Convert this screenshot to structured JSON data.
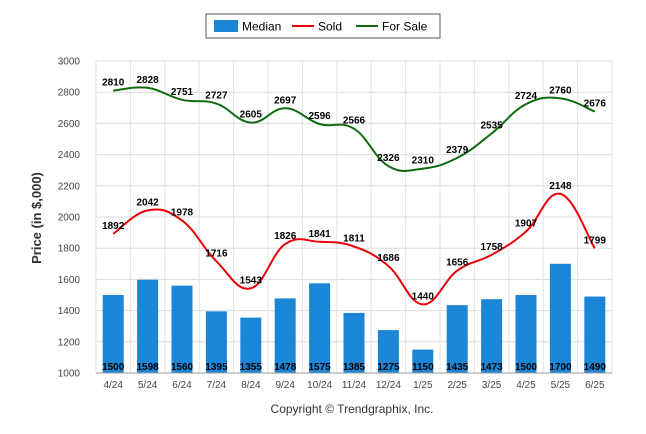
{
  "chart_data": {
    "type": "bar",
    "ylabel": "Price (in $,000)",
    "ylim": [
      1000,
      3000
    ],
    "yticks": [
      1000,
      1200,
      1400,
      1600,
      1800,
      2000,
      2200,
      2400,
      2600,
      2800,
      3000
    ],
    "grid": true,
    "legend_position": "top-center",
    "categories": [
      "4/24",
      "5/24",
      "6/24",
      "7/24",
      "8/24",
      "9/24",
      "10/24",
      "11/24",
      "12/24",
      "1/25",
      "2/25",
      "3/25",
      "4/25",
      "5/25",
      "6/25"
    ],
    "series": [
      {
        "name": "Median",
        "kind": "bar",
        "color": "#1c86d6",
        "values": [
          1500,
          1598,
          1560,
          1395,
          1355,
          1478,
          1575,
          1385,
          1275,
          1150,
          1435,
          1473,
          1500,
          1700,
          1490
        ]
      },
      {
        "name": "Sold",
        "kind": "line",
        "color": "#e8000b",
        "values": [
          1892,
          2042,
          1978,
          1716,
          1543,
          1826,
          1841,
          1811,
          1686,
          1440,
          1656,
          1758,
          1907,
          2148,
          1799
        ]
      },
      {
        "name": "For Sale",
        "kind": "line",
        "color": "#0f6b0f",
        "values": [
          2810,
          2828,
          2751,
          2727,
          2605,
          2697,
          2596,
          2566,
          2326,
          2310,
          2379,
          2535,
          2724,
          2760,
          2676
        ]
      }
    ]
  },
  "footer": {
    "copyright": "Copyright © Trendgraphix, Inc."
  }
}
